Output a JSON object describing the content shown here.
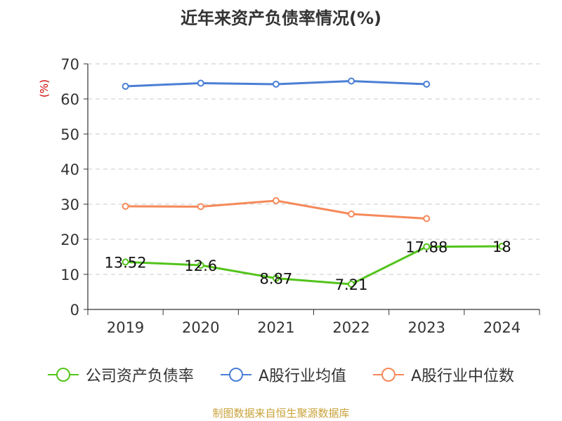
{
  "chart_data": {
    "type": "line",
    "title": "近年来资产负债率情况(%)",
    "ylabel": "(%)",
    "xlabel": "",
    "categories": [
      "2019",
      "2020",
      "2021",
      "2022",
      "2023",
      "2024"
    ],
    "ylim": [
      0,
      70
    ],
    "yticks": [
      "0",
      "10",
      "20",
      "30",
      "40",
      "50",
      "60",
      "70"
    ],
    "grid": true,
    "legend_position": "bottom",
    "series": [
      {
        "name": "公司资产负债率",
        "color": "#52c41a",
        "values": [
          13.52,
          12.6,
          8.87,
          7.21,
          17.88,
          18
        ],
        "labels": [
          "13.52",
          "12.6",
          "8.87",
          "7.21",
          "17.88",
          "18"
        ]
      },
      {
        "name": "A股行业均值",
        "color": "#4a7fd4",
        "values": [
          63.6,
          64.5,
          64.2,
          65.1,
          64.2,
          null
        ],
        "labels": []
      },
      {
        "name": "A股行业中位数",
        "color": "#f5895a",
        "values": [
          29.4,
          29.3,
          31.0,
          27.2,
          25.9,
          null
        ],
        "labels": []
      }
    ]
  },
  "source": "制图数据来自恒生聚源数据库"
}
